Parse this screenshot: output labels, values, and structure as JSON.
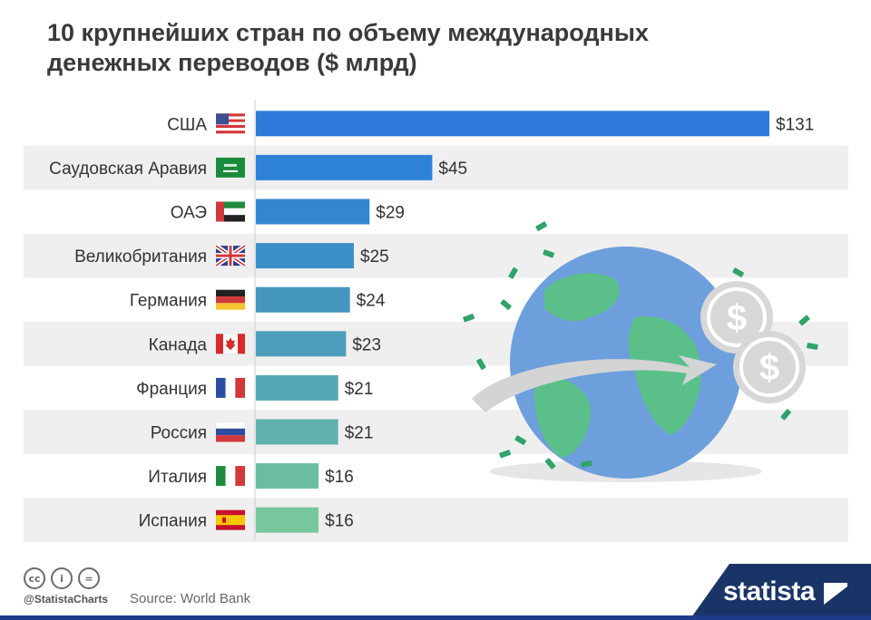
{
  "title": "10 крупнейших стран по объему международных денежных переводов ($ млрд)",
  "chart_data": {
    "type": "bar",
    "orientation": "horizontal",
    "categories": [
      "США",
      "Саудовская Аравия",
      "ОАЭ",
      "Великобритания",
      "Германия",
      "Канада",
      "Франция",
      "Россия",
      "Италия",
      "Испания"
    ],
    "values": [
      131,
      45,
      29,
      25,
      24,
      23,
      21,
      21,
      16,
      16
    ],
    "value_labels": [
      "$131",
      "$45",
      "$29",
      "$25",
      "$24",
      "$23",
      "$21",
      "$21",
      "$16",
      "$16"
    ],
    "flags": [
      "us-flag-icon",
      "saudi-arabia-flag-icon",
      "uae-flag-icon",
      "uk-flag-icon",
      "germany-flag-icon",
      "canada-flag-icon",
      "france-flag-icon",
      "russia-flag-icon",
      "italy-flag-icon",
      "spain-flag-icon"
    ],
    "bar_colors": [
      "#2e7bdc",
      "#2e82d7",
      "#3487cf",
      "#3b8fc7",
      "#4496bf",
      "#4c9ebb",
      "#54a8b5",
      "#5fb3ac",
      "#6abda3",
      "#78c79c"
    ],
    "row_shading": "alternating",
    "xlim": [
      0,
      131
    ]
  },
  "footer": {
    "cc_icons": [
      "cc-icon",
      "by-icon",
      "nd-icon"
    ],
    "cc_glyphs": [
      "cc",
      "i",
      "="
    ],
    "handle": "@StatistaCharts",
    "source": "Source: World Bank",
    "brand": "statista"
  }
}
